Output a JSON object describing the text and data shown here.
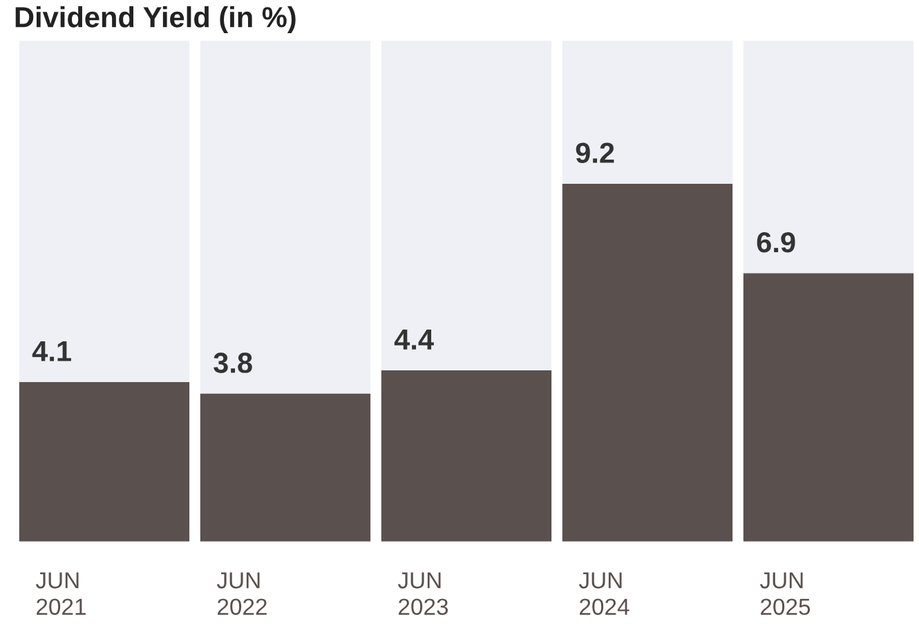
{
  "chart_data": {
    "type": "bar",
    "title": "Dividend Yield (in %)",
    "categories": [
      "JUN\n2021",
      "JUN\n2022",
      "JUN\n2023",
      "JUN\n2024",
      "JUN\n2025"
    ],
    "values": [
      4.1,
      3.8,
      4.4,
      9.2,
      6.9
    ],
    "color": "#5a504e",
    "data_labels": true
  }
}
